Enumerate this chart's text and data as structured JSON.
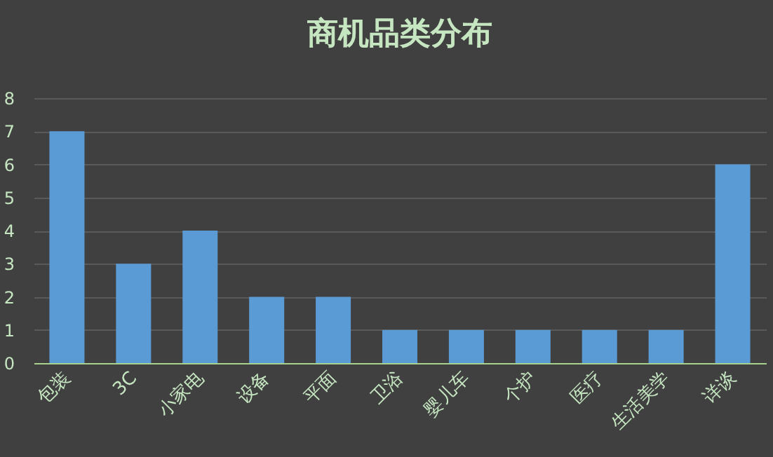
{
  "chart_data": {
    "type": "bar",
    "title": "商机品类分布",
    "categories": [
      "包装",
      "3C",
      "小家电",
      "设备",
      "平面",
      "卫浴",
      "婴儿车",
      "个护",
      "医疗",
      "生活美学",
      "详谈"
    ],
    "values": [
      7,
      3,
      4,
      2,
      2,
      1,
      1,
      1,
      1,
      1,
      6
    ],
    "color": "#5b9bd5",
    "ylim": [
      0,
      8
    ],
    "yticks": [
      0,
      1,
      2,
      3,
      4,
      5,
      6,
      7,
      8
    ],
    "grid": "y"
  }
}
